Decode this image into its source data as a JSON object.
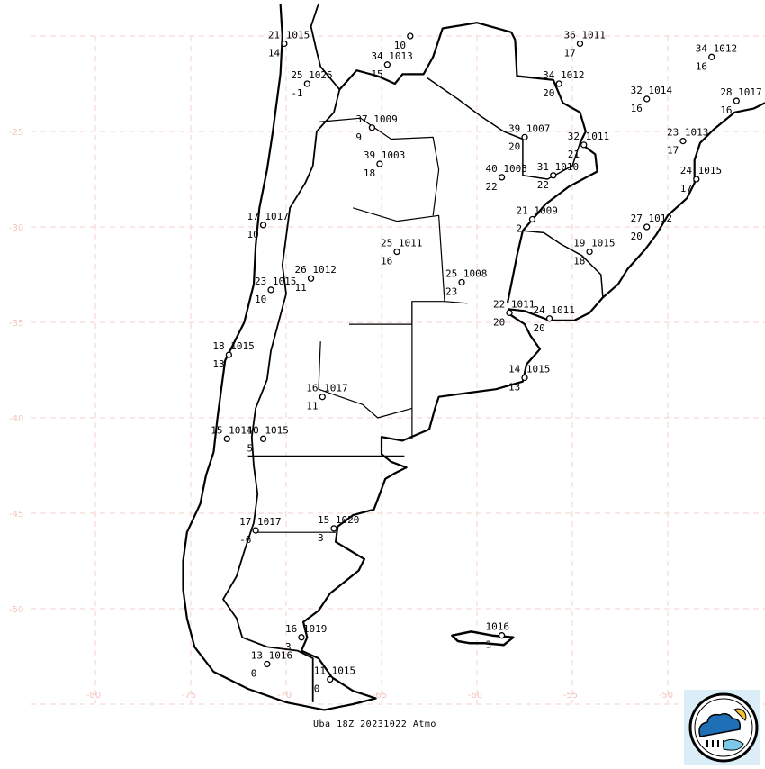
{
  "caption": "Uba 18Z 20231022 Atmo",
  "map": {
    "lon_range": [
      -82.6,
      -44.9
    ],
    "lat_range": [
      -18.3,
      -55.7
    ],
    "grid": true,
    "grid_color": "#f6d2cc",
    "lon_ticks": [
      -80,
      -75,
      -70,
      -65,
      -60,
      -55,
      -50
    ],
    "lat_ticks": [
      -25,
      -30,
      -35,
      -40,
      -45,
      -50
    ],
    "coast_color": "#000000"
  },
  "stations": [
    {
      "lon": -70.1,
      "lat": -20.4,
      "temp": "21",
      "pres": "1015",
      "dew": "14"
    },
    {
      "lon": -63.5,
      "lat": -20.0,
      "temp": "",
      "pres": "",
      "dew": "10"
    },
    {
      "lon": -64.7,
      "lat": -21.5,
      "temp": "34",
      "pres": "1013",
      "dew": "15"
    },
    {
      "lon": -68.9,
      "lat": -22.5,
      "temp": "25",
      "pres": "1025",
      "dew": "-1"
    },
    {
      "lon": -54.6,
      "lat": -20.4,
      "temp": "36",
      "pres": "1011",
      "dew": "17"
    },
    {
      "lon": -55.7,
      "lat": -22.5,
      "temp": "34",
      "pres": "1012",
      "dew": "20"
    },
    {
      "lon": -47.7,
      "lat": -21.1,
      "temp": "34",
      "pres": "1012",
      "dew": "16"
    },
    {
      "lon": -51.1,
      "lat": -23.3,
      "temp": "32",
      "pres": "1014",
      "dew": "16"
    },
    {
      "lon": -46.4,
      "lat": -23.4,
      "temp": "28",
      "pres": "1017",
      "dew": "16"
    },
    {
      "lon": -65.5,
      "lat": -24.8,
      "temp": "37",
      "pres": "1009",
      "dew": "9"
    },
    {
      "lon": -57.5,
      "lat": -25.3,
      "temp": "39",
      "pres": "1007",
      "dew": "20"
    },
    {
      "lon": -54.4,
      "lat": -25.7,
      "temp": "32",
      "pres": "1011",
      "dew": "21"
    },
    {
      "lon": -49.2,
      "lat": -25.5,
      "temp": "23",
      "pres": "1013",
      "dew": "17"
    },
    {
      "lon": -65.1,
      "lat": -26.7,
      "temp": "39",
      "pres": "1003",
      "dew": "18"
    },
    {
      "lon": -58.7,
      "lat": -27.4,
      "temp": "40",
      "pres": "1003",
      "dew": "22"
    },
    {
      "lon": -56.0,
      "lat": -27.3,
      "temp": "31",
      "pres": "1010",
      "dew": "22"
    },
    {
      "lon": -48.5,
      "lat": -27.5,
      "temp": "24",
      "pres": "1015",
      "dew": "17"
    },
    {
      "lon": -71.2,
      "lat": -29.9,
      "temp": "17",
      "pres": "1017",
      "dew": "10"
    },
    {
      "lon": -57.1,
      "lat": -29.6,
      "temp": "21",
      "pres": "1009",
      "dew": "2"
    },
    {
      "lon": -51.1,
      "lat": -30.0,
      "temp": "27",
      "pres": "1012",
      "dew": "20"
    },
    {
      "lon": -54.1,
      "lat": -31.3,
      "temp": "19",
      "pres": "1015",
      "dew": "18"
    },
    {
      "lon": -64.2,
      "lat": -31.3,
      "temp": "25",
      "pres": "1011",
      "dew": "16"
    },
    {
      "lon": -68.7,
      "lat": -32.7,
      "temp": "26",
      "pres": "1012",
      "dew": "11"
    },
    {
      "lon": -70.8,
      "lat": -33.3,
      "temp": "23",
      "pres": "1015",
      "dew": "10"
    },
    {
      "lon": -60.8,
      "lat": -32.9,
      "temp": "25",
      "pres": "1008",
      "dew": "23"
    },
    {
      "lon": -58.3,
      "lat": -34.5,
      "temp": "22",
      "pres": "1011",
      "dew": "20"
    },
    {
      "lon": -56.2,
      "lat": -34.8,
      "temp": "24",
      "pres": "1011",
      "dew": "20"
    },
    {
      "lon": -73.0,
      "lat": -36.7,
      "temp": "18",
      "pres": "1015",
      "dew": "13"
    },
    {
      "lon": -57.5,
      "lat": -37.9,
      "temp": "14",
      "pres": "1015",
      "dew": "13"
    },
    {
      "lon": -68.1,
      "lat": -38.9,
      "temp": "16",
      "pres": "1017",
      "dew": "11"
    },
    {
      "lon": -73.1,
      "lat": -41.1,
      "temp": "15",
      "pres": "1014",
      "dew": ""
    },
    {
      "lon": -71.2,
      "lat": -41.1,
      "temp": "10",
      "pres": "1015",
      "dew": "5"
    },
    {
      "lon": -71.6,
      "lat": -45.9,
      "temp": "17",
      "pres": "1017",
      "dew": "-6"
    },
    {
      "lon": -67.5,
      "lat": -45.8,
      "temp": "15",
      "pres": "1020",
      "dew": "3"
    },
    {
      "lon": -69.2,
      "lat": -51.5,
      "temp": "16",
      "pres": "1019",
      "dew": "3"
    },
    {
      "lon": -71.0,
      "lat": -52.9,
      "temp": "13",
      "pres": "1016",
      "dew": "0"
    },
    {
      "lon": -67.7,
      "lat": -53.7,
      "temp": "11",
      "pres": "1015",
      "dew": "0"
    },
    {
      "lon": -58.7,
      "lat": -51.4,
      "temp": "",
      "pres": "1016",
      "dew": "3"
    }
  ]
}
